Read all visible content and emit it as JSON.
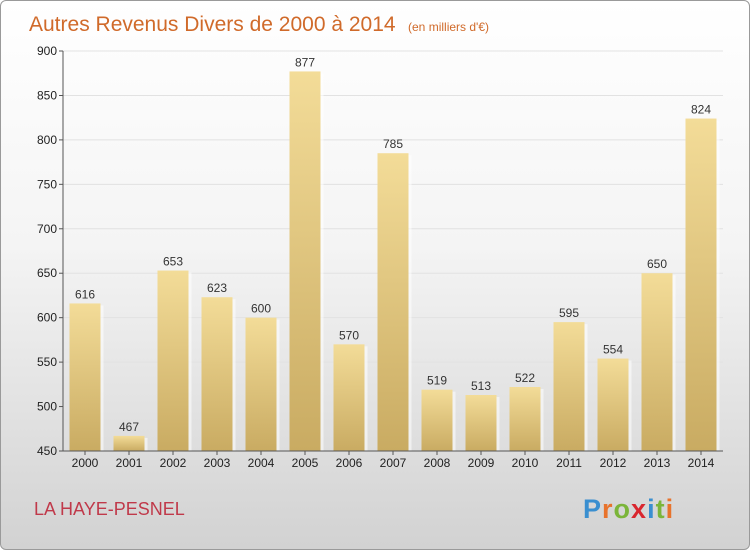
{
  "chart_data": {
    "type": "bar",
    "title": "Autres Revenus Divers de 2000 à 2014",
    "subtitle": "(en milliers d'€)",
    "categories": [
      "2000",
      "2001",
      "2002",
      "2003",
      "2004",
      "2005",
      "2006",
      "2007",
      "2008",
      "2009",
      "2010",
      "2011",
      "2012",
      "2013",
      "2014"
    ],
    "values": [
      616,
      467,
      653,
      623,
      600,
      877,
      570,
      785,
      519,
      513,
      522,
      595,
      554,
      650,
      824
    ],
    "ylim": [
      450,
      900
    ],
    "yticks": [
      450,
      500,
      550,
      600,
      650,
      700,
      750,
      800,
      850,
      900
    ],
    "grid": true,
    "bar_color": "#e6c77a"
  },
  "location": "LA HAYE-PESNEL",
  "logo": {
    "letters": [
      "P",
      "r",
      "o",
      "x",
      "i",
      "t",
      "i"
    ],
    "colors": [
      "#3a8fd0",
      "#e8732c",
      "#7bb53a",
      "#d9262e",
      "#3a8fd0",
      "#7bb53a",
      "#e8732c"
    ]
  }
}
